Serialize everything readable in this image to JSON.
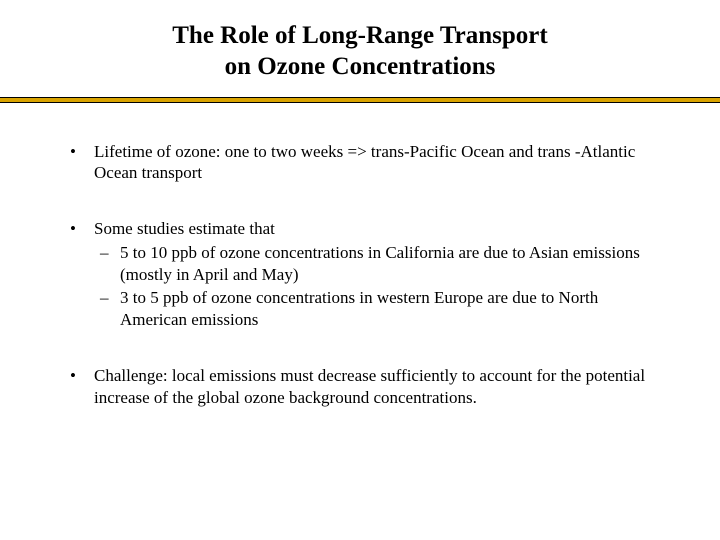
{
  "title": {
    "line1": "The Role of Long-Range Transport",
    "line2": "on Ozone Concentrations"
  },
  "divider": {
    "fill_color": "#d9a300",
    "border_color": "#000000"
  },
  "bullets": [
    {
      "text": "Lifetime of ozone: one to two weeks  =>  trans-Pacific Ocean and trans -Atlantic Ocean transport",
      "sub": []
    },
    {
      "text": "Some studies estimate that",
      "sub": [
        "5 to 10 ppb of ozone concentrations in California are due to Asian emissions (mostly in April and May)",
        "3 to 5 ppb of ozone concentrations in western Europe are due to North American emissions"
      ]
    },
    {
      "text": "Challenge: local emissions must decrease sufficiently to account for the potential increase of the global ozone background concentrations.",
      "sub": []
    }
  ]
}
